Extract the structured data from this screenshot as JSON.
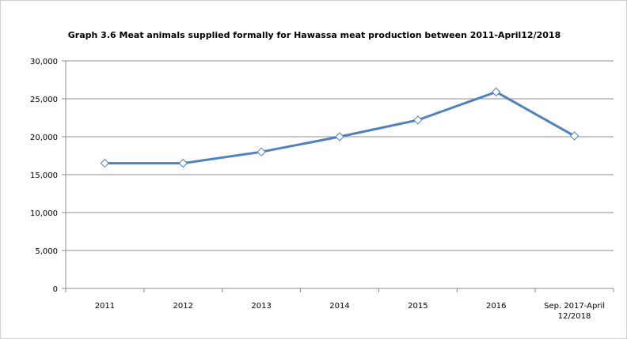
{
  "chart_data": {
    "type": "line",
    "title": "Graph 3.6 Meat animals supplied formally for Hawassa  meat production between 2011-April12/2018",
    "xlabel": "",
    "ylabel": "",
    "categories": [
      "2011",
      "2012",
      "2013",
      "2014",
      "2015",
      "2016",
      "Sep. 2017-April\n12/2018"
    ],
    "series": [
      {
        "values": [
          16500,
          16500,
          18000,
          20000,
          22200,
          25900,
          20100
        ]
      }
    ],
    "ylim": [
      0,
      30000
    ],
    "yticks": [
      0,
      5000,
      10000,
      15000,
      20000,
      25000,
      30000
    ],
    "ytick_labels": [
      "0",
      "5,000",
      "10,000",
      "15,000",
      "20,000",
      "25,000",
      "30,000"
    ],
    "grid": true,
    "legend": "none",
    "colors": {
      "line": "#4f81bd",
      "marker_fill": "#ffffff",
      "grid": "#8c8c8c"
    }
  }
}
